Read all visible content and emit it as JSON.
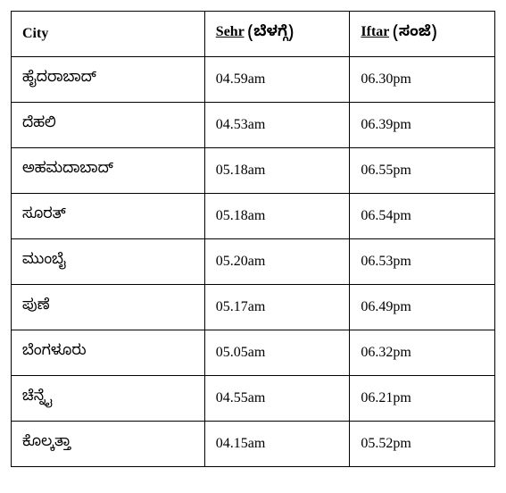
{
  "table": {
    "border_color": "#000000",
    "background_color": "#ffffff",
    "text_color": "#000000",
    "font_size": 16,
    "columns": [
      {
        "key": "city",
        "label_en": "City",
        "label_kn": ""
      },
      {
        "key": "sehr",
        "label_en": "Sehr",
        "label_kn": "(ಬೆಳಗ್ಗೆ)"
      },
      {
        "key": "iftar",
        "label_en": "Iftar",
        "label_kn": "(ಸಂಜೆ)"
      }
    ],
    "rows": [
      {
        "city": "ಹೈದರಾಬಾದ್",
        "sehr": "04.59am",
        "iftar": "06.30pm"
      },
      {
        "city": "ದೆಹಲಿ",
        "sehr": "04.53am",
        "iftar": "06.39pm"
      },
      {
        "city": "ಅಹಮದಾಬಾದ್",
        "sehr": "05.18am",
        "iftar": "06.55pm"
      },
      {
        "city": "ಸೂರತ್",
        "sehr": "05.18am",
        "iftar": "06.54pm"
      },
      {
        "city": "ಮುಂಬೈ",
        "sehr": "05.20am",
        "iftar": "06.53pm"
      },
      {
        "city": "ಪುಣೆ",
        "sehr": "05.17am",
        "iftar": "06.49pm"
      },
      {
        "city": "ಬೆಂಗಳೂರು",
        "sehr": "05.05am",
        "iftar": "06.32pm"
      },
      {
        "city": "ಚೆನ್ನೈ",
        "sehr": "04.55am",
        "iftar": "06.21pm"
      },
      {
        "city": "ಕೊಲ್ಕತ್ತಾ",
        "sehr": "04.15am",
        "iftar": "05.52pm"
      }
    ]
  }
}
